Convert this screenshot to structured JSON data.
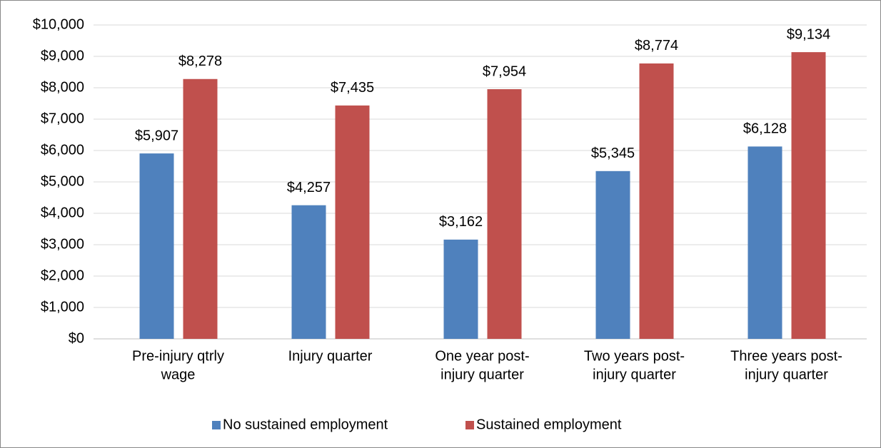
{
  "chart_data": {
    "type": "bar",
    "categories": [
      [
        "Pre-injury qtrly",
        "wage"
      ],
      [
        "Injury quarter"
      ],
      [
        "One year post-",
        "injury quarter"
      ],
      [
        "Two years post-",
        "injury quarter"
      ],
      [
        "Three years post-",
        "injury quarter"
      ]
    ],
    "series": [
      {
        "name": "No sustained employment",
        "color": "#4f81bd",
        "values": [
          5907,
          4257,
          3162,
          5345,
          6128
        ],
        "value_labels": [
          "$5,907",
          "$4,257",
          "$3,162",
          "$5,345",
          "$6,128"
        ]
      },
      {
        "name": "Sustained employment",
        "color": "#c0504d",
        "values": [
          8278,
          7435,
          7954,
          8774,
          9134
        ],
        "value_labels": [
          "$8,278",
          "$7,435",
          "$7,954",
          "$8,774",
          "$9,134"
        ]
      }
    ],
    "ylim": [
      0,
      10000
    ],
    "yticks": [
      {
        "value": 0,
        "label": "$0"
      },
      {
        "value": 1000,
        "label": "$1,000"
      },
      {
        "value": 2000,
        "label": "$2,000"
      },
      {
        "value": 3000,
        "label": "$3,000"
      },
      {
        "value": 4000,
        "label": "$4,000"
      },
      {
        "value": 5000,
        "label": "$5,000"
      },
      {
        "value": 6000,
        "label": "$6,000"
      },
      {
        "value": 7000,
        "label": "$7,000"
      },
      {
        "value": 8000,
        "label": "$8,000"
      },
      {
        "value": 9000,
        "label": "$9,000"
      },
      {
        "value": 10000,
        "label": "$10,000"
      }
    ],
    "grid": true,
    "legend": "bottom"
  }
}
